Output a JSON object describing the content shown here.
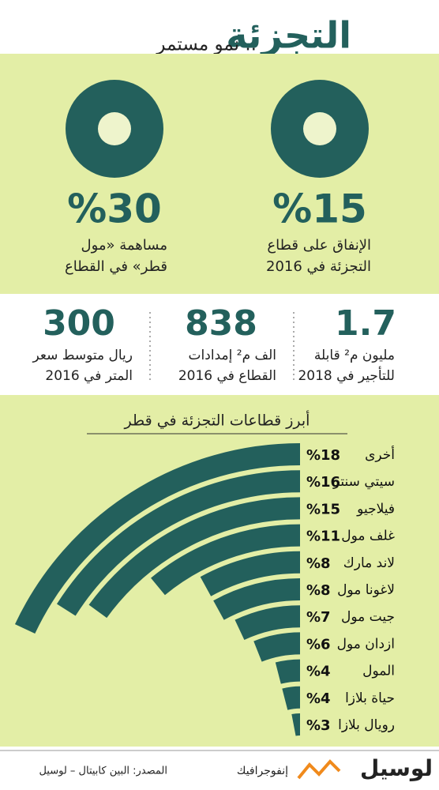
{
  "header": {
    "title": "التجزئة",
    "subtitle": ".. نمو مستمر"
  },
  "kpis": [
    {
      "value": "%15",
      "lines": [
        "الإنفاق على قطاع",
        "التجزئة في 2016"
      ]
    },
    {
      "value": "%30",
      "lines": [
        "مساهمة «مول",
        "قطر» في القطاع"
      ]
    }
  ],
  "stats": [
    {
      "value": "1.7",
      "lines": [
        "مليون م² قابلة",
        "للتأجير في 2018"
      ]
    },
    {
      "value": "838",
      "lines": [
        "الف م² إمدادات",
        "القطاع في 2016"
      ]
    },
    {
      "value": "300",
      "lines": [
        "ريال متوسط سعر",
        "المتر في 2016"
      ]
    }
  ],
  "chart_data": {
    "type": "radialbar",
    "title": "أبرز قطاعات التجزئة في قطر",
    "categories": [
      "أخرى",
      "سيتي سنتر",
      "فيلاجيو",
      "غلف مول",
      "لاند مارك",
      "لاغونا مول",
      "جيت مول",
      "ازدان مول",
      "المول",
      "حياة بلازا",
      "رويال بلازا"
    ],
    "values": [
      18,
      16,
      15,
      11,
      8,
      8,
      7,
      6,
      4,
      4,
      3
    ],
    "value_labels": [
      "%18",
      "%16",
      "%15",
      "%11",
      "%8",
      "%8",
      "%7",
      "%6",
      "%4",
      "%4",
      "%3"
    ],
    "color": "#23605c"
  },
  "footer": {
    "source": "المصدر: البين كابيتال – لوسيل",
    "section": "إنفوجرافيك",
    "brand": "لوسيل"
  }
}
